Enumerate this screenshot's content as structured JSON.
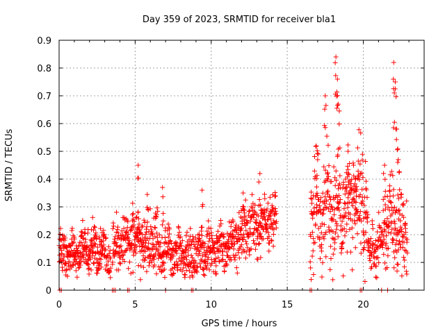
{
  "chart_data": {
    "type": "scatter",
    "title": "Day 359 of 2023, SRMTID for receiver bla1",
    "xlabel": "GPS time / hours",
    "ylabel": "SRMTID / TECUs",
    "xlim": [
      0,
      24
    ],
    "ylim": [
      0,
      0.9
    ],
    "xticks": [
      0,
      5,
      10,
      15,
      20
    ],
    "xtick_labels": [
      "0",
      "5",
      "10",
      "15",
      "20"
    ],
    "yticks": [
      0,
      0.1,
      0.2,
      0.3,
      0.4,
      0.5,
      0.6,
      0.7,
      0.8,
      0.9
    ],
    "ytick_labels": [
      "0",
      "0.1",
      "0.2",
      "0.3",
      "0.4",
      "0.5",
      "0.6",
      "0.7",
      "0.8",
      "0.9"
    ],
    "grid": true,
    "marker": "+",
    "color": "#ff0000",
    "series": [
      {
        "name": "SRMTID",
        "segments": [
          {
            "start": 0.0,
            "end": 3.0,
            "base": [
              0.13,
              0.15
            ],
            "spread": 0.05,
            "count": 260
          },
          {
            "start": 3.0,
            "end": 3.4,
            "base": [
              0.13,
              0.11
            ],
            "spread": 0.04,
            "count": 30
          },
          {
            "start": 3.5,
            "end": 4.7,
            "base": [
              0.15,
              0.18
            ],
            "spread": 0.05,
            "count": 90
          },
          {
            "start": 4.7,
            "end": 6.5,
            "base": [
              0.21,
              0.17
            ],
            "spread": 0.07,
            "count": 160
          },
          {
            "start": 6.5,
            "end": 9.0,
            "base": [
              0.14,
              0.12
            ],
            "spread": 0.05,
            "count": 200
          },
          {
            "start": 9.0,
            "end": 11.5,
            "base": [
              0.14,
              0.16
            ],
            "spread": 0.05,
            "count": 200
          },
          {
            "start": 11.5,
            "end": 14.3,
            "base": [
              0.18,
              0.26
            ],
            "spread": 0.06,
            "count": 220
          },
          {
            "start": 16.5,
            "end": 20.3,
            "base": [
              0.3,
              0.3
            ],
            "spread": 0.12,
            "count": 320
          },
          {
            "start": 20.3,
            "end": 21.3,
            "base": [
              0.13,
              0.17
            ],
            "spread": 0.05,
            "count": 70
          },
          {
            "start": 21.3,
            "end": 22.9,
            "base": [
              0.26,
              0.2
            ],
            "spread": 0.1,
            "count": 130
          }
        ],
        "peaks": [
          {
            "x": 5.2,
            "y": 0.45
          },
          {
            "x": 6.8,
            "y": 0.37
          },
          {
            "x": 9.4,
            "y": 0.36
          },
          {
            "x": 12.1,
            "y": 0.35
          },
          {
            "x": 13.2,
            "y": 0.42
          },
          {
            "x": 17.0,
            "y": 0.47
          },
          {
            "x": 17.5,
            "y": 0.7
          },
          {
            "x": 18.2,
            "y": 0.84
          },
          {
            "x": 18.3,
            "y": 0.76
          },
          {
            "x": 18.35,
            "y": 0.67
          },
          {
            "x": 19.0,
            "y": 0.5
          },
          {
            "x": 19.5,
            "y": 0.4
          },
          {
            "x": 21.4,
            "y": 0.45
          },
          {
            "x": 22.0,
            "y": 0.82
          },
          {
            "x": 22.1,
            "y": 0.75
          },
          {
            "x": 22.2,
            "y": 0.58
          },
          {
            "x": 22.3,
            "y": 0.47
          }
        ],
        "zero_points": [
          0.05,
          0.15,
          3.5,
          3.6,
          3.7,
          4.5,
          4.6,
          7.0,
          8.7,
          8.8,
          16.5,
          16.6,
          19.8,
          19.9,
          21.2,
          21.6
        ]
      }
    ]
  }
}
